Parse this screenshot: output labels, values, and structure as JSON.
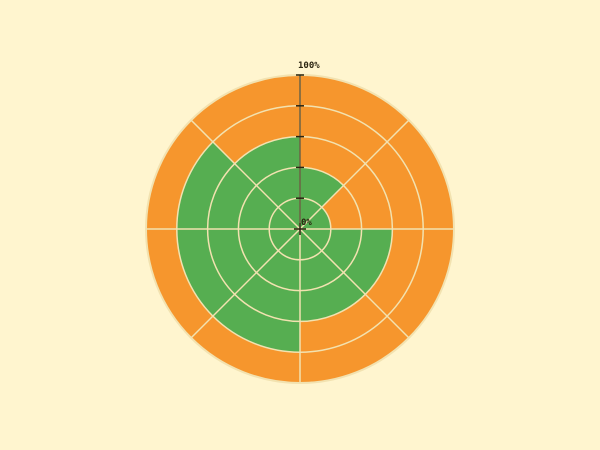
{
  "scale": {
    "min_label": "0%",
    "max_label": "100%",
    "ring_count": 5
  },
  "colors": {
    "background": "#fff5cf",
    "filled": "#56ae51",
    "unfilled": "#f6962d",
    "grid": "#f2e2b0",
    "axis": "#2a2410"
  },
  "chart_data": {
    "type": "polar-area",
    "max_value": 100,
    "sector_count": 8,
    "sector_values": [
      40,
      20,
      60,
      60,
      80,
      80,
      80,
      60
    ]
  }
}
